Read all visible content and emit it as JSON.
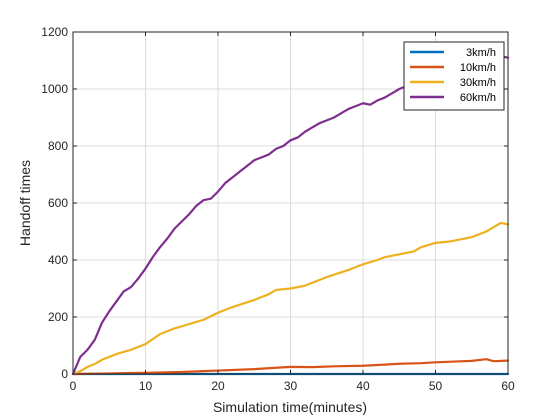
{
  "chart_data": {
    "type": "line",
    "title": "",
    "xlabel": "Simulation time(minutes)",
    "ylabel": "Handoff times",
    "xlim": [
      0,
      60
    ],
    "ylim": [
      0,
      1200
    ],
    "xticks": [
      0,
      10,
      20,
      30,
      40,
      50,
      60
    ],
    "yticks": [
      0,
      200,
      400,
      600,
      800,
      1000,
      1200
    ],
    "grid": true,
    "legend_position": "top-right",
    "series": [
      {
        "name": "3km/h",
        "color": "#0072BD",
        "x": [
          0,
          10,
          20,
          30,
          40,
          50,
          60
        ],
        "y": [
          0,
          0,
          0,
          0,
          0,
          0,
          0
        ]
      },
      {
        "name": "10km/h",
        "color": "#D95319",
        "x": [
          0,
          5,
          10,
          15,
          18,
          20,
          25,
          28,
          30,
          33,
          36,
          40,
          43,
          45,
          48,
          50,
          53,
          55,
          57,
          58,
          60
        ],
        "y": [
          0,
          2,
          4,
          7,
          10,
          12,
          17,
          22,
          25,
          24,
          27,
          29,
          33,
          36,
          38,
          41,
          44,
          46,
          52,
          45,
          47
        ]
      },
      {
        "name": "30km/h",
        "color": "#EDB120",
        "x": [
          0,
          1,
          2,
          3,
          4,
          5,
          6,
          8,
          10,
          12,
          14,
          16,
          18,
          20,
          22,
          25,
          27,
          28,
          30,
          32,
          35,
          38,
          40,
          42,
          43,
          45,
          47,
          48,
          50,
          52,
          55,
          57,
          58,
          59,
          60
        ],
        "y": [
          0,
          10,
          25,
          35,
          50,
          60,
          70,
          85,
          105,
          140,
          160,
          175,
          190,
          215,
          235,
          260,
          280,
          295,
          300,
          310,
          340,
          365,
          385,
          400,
          410,
          420,
          430,
          445,
          460,
          465,
          480,
          500,
          515,
          530,
          525
        ]
      },
      {
        "name": "60km/h",
        "color": "#7E2F8E",
        "x": [
          0,
          1,
          2,
          3,
          4,
          5,
          6,
          7,
          8,
          9,
          10,
          11,
          12,
          13,
          14,
          15,
          16,
          17,
          18,
          19,
          20,
          21,
          22,
          23,
          24,
          25,
          26,
          27,
          28,
          29,
          30,
          31,
          32,
          33,
          34,
          35,
          36,
          37,
          38,
          39,
          40,
          41,
          42,
          43,
          44,
          45,
          46,
          47,
          48,
          49,
          50,
          51,
          52,
          53,
          54,
          55,
          56,
          57,
          58,
          59,
          60
        ],
        "y": [
          0,
          60,
          85,
          120,
          180,
          220,
          255,
          290,
          305,
          335,
          370,
          410,
          445,
          475,
          510,
          535,
          560,
          590,
          610,
          615,
          640,
          670,
          690,
          710,
          730,
          750,
          760,
          770,
          790,
          800,
          820,
          830,
          850,
          865,
          880,
          890,
          900,
          915,
          930,
          940,
          950,
          945,
          960,
          970,
          985,
          1000,
          1010,
          1020,
          1030,
          1040,
          1050,
          1060,
          1070,
          1075,
          1080,
          1090,
          1095,
          1100,
          1105,
          1115,
          1110
        ]
      }
    ]
  }
}
